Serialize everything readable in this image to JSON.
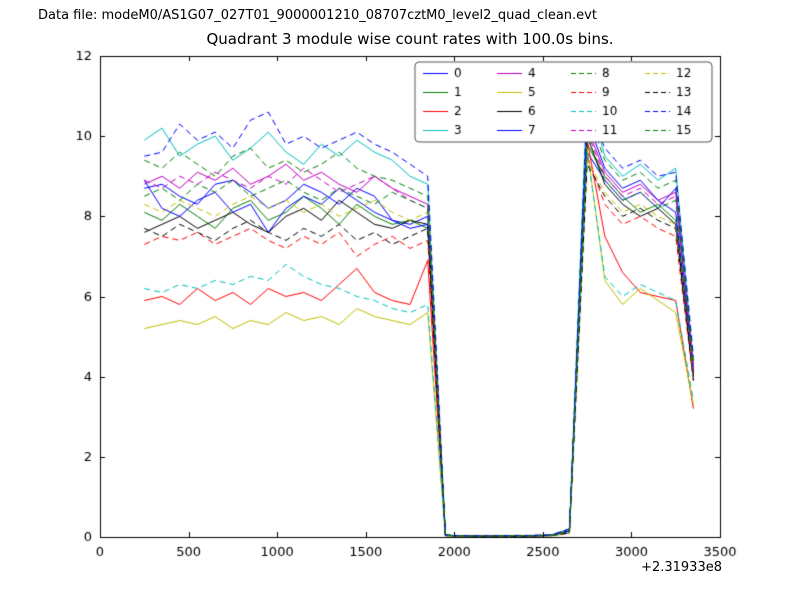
{
  "figure": {
    "datafile_label": "Data file: modeM0/AS1G07_027T01_9000001210_08707cztM0_level2_quad_clean.evt",
    "title": "Quadrant 3 module wise count rates with 100.0s bins."
  },
  "chart_data": {
    "type": "line",
    "title": "Quadrant 3 module wise count rates with 100.0s bins.",
    "xlabel": "",
    "ylabel": "",
    "xlim": [
      0,
      3500
    ],
    "ylim": [
      0,
      12
    ],
    "xticks": [
      0,
      500,
      1000,
      1500,
      2000,
      2500,
      3000,
      3500
    ],
    "yticks": [
      0,
      2,
      4,
      6,
      8,
      10,
      12
    ],
    "x_offset_text": "+2.31933e8",
    "grid": false,
    "legend_position": "upper center-right, 4 columns",
    "legend_labels": [
      "0",
      "1",
      "2",
      "3",
      "4",
      "5",
      "6",
      "7",
      "8",
      "9",
      "10",
      "11",
      "12",
      "13",
      "14",
      "15"
    ],
    "x": [
      250,
      350,
      450,
      550,
      650,
      750,
      850,
      950,
      1050,
      1150,
      1250,
      1350,
      1450,
      1550,
      1650,
      1750,
      1850,
      1950,
      2050,
      2150,
      2250,
      2350,
      2450,
      2550,
      2650,
      2750,
      2850,
      2950,
      3050,
      3150,
      3250,
      3350
    ],
    "series": [
      {
        "name": "0",
        "color": "#0000ff",
        "dash": false,
        "values": [
          8.7,
          8.8,
          8.5,
          8.3,
          8.8,
          8.9,
          8.6,
          8.2,
          8.4,
          8.8,
          8.6,
          8.3,
          8.7,
          8.5,
          7.9,
          7.8,
          8.0,
          0.05,
          0.02,
          0.03,
          0.02,
          0.03,
          0.04,
          0.05,
          0.2,
          9.6,
          8.9,
          8.4,
          8.6,
          8.2,
          8.7,
          4.1
        ]
      },
      {
        "name": "1",
        "color": "#008000",
        "dash": false,
        "values": [
          8.1,
          7.9,
          8.3,
          8.0,
          7.7,
          8.2,
          8.4,
          7.9,
          8.1,
          8.5,
          8.2,
          7.8,
          8.3,
          8.0,
          7.8,
          7.9,
          7.7,
          0.04,
          0.03,
          0.02,
          0.03,
          0.02,
          0.03,
          0.04,
          0.15,
          9.8,
          9.0,
          8.5,
          8.1,
          8.3,
          7.9,
          4.0
        ]
      },
      {
        "name": "2",
        "color": "#ff0000",
        "dash": false,
        "values": [
          5.9,
          6.0,
          5.8,
          6.2,
          5.9,
          6.1,
          5.8,
          6.2,
          6.0,
          6.1,
          5.9,
          6.3,
          6.7,
          6.1,
          5.9,
          5.8,
          6.9,
          0.03,
          0.02,
          0.02,
          0.03,
          0.02,
          0.03,
          0.03,
          0.1,
          9.9,
          7.5,
          6.6,
          6.1,
          6.0,
          5.9,
          3.2
        ]
      },
      {
        "name": "3",
        "color": "#00bfbf",
        "dash": false,
        "values": [
          9.9,
          10.2,
          9.5,
          9.8,
          10.0,
          9.4,
          9.7,
          10.1,
          9.6,
          9.3,
          9.8,
          9.5,
          9.9,
          9.6,
          9.4,
          9.0,
          8.8,
          0.05,
          0.02,
          0.03,
          0.03,
          0.04,
          0.03,
          0.05,
          0.2,
          11.1,
          9.5,
          9.0,
          9.3,
          8.9,
          9.2,
          4.3
        ]
      },
      {
        "name": "4",
        "color": "#bf00bf",
        "dash": false,
        "values": [
          8.8,
          9.0,
          8.7,
          9.1,
          8.9,
          9.2,
          8.8,
          9.0,
          9.3,
          8.9,
          9.1,
          8.8,
          8.6,
          9.0,
          8.7,
          8.5,
          8.3,
          0.04,
          0.03,
          0.02,
          0.03,
          0.03,
          0.04,
          0.04,
          0.15,
          10.2,
          9.1,
          8.6,
          8.8,
          8.4,
          8.6,
          4.2
        ]
      },
      {
        "name": "5",
        "color": "#bfbf00",
        "dash": false,
        "values": [
          5.2,
          5.3,
          5.4,
          5.3,
          5.5,
          5.2,
          5.4,
          5.3,
          5.6,
          5.4,
          5.5,
          5.3,
          5.7,
          5.5,
          5.4,
          5.3,
          5.6,
          0.03,
          0.02,
          0.02,
          0.02,
          0.03,
          0.03,
          0.03,
          0.1,
          9.7,
          6.4,
          5.8,
          6.2,
          5.9,
          5.6,
          3.3
        ]
      },
      {
        "name": "6",
        "color": "#000000",
        "dash": false,
        "values": [
          7.6,
          7.8,
          8.0,
          7.7,
          7.9,
          8.1,
          7.8,
          7.6,
          8.0,
          8.2,
          7.9,
          8.4,
          8.1,
          7.8,
          7.7,
          7.9,
          7.8,
          0.04,
          0.02,
          0.03,
          0.02,
          0.03,
          0.03,
          0.04,
          0.15,
          10.0,
          8.8,
          8.3,
          8.0,
          8.2,
          7.8,
          4.0
        ]
      },
      {
        "name": "7",
        "color": "#0000ff",
        "dash": false,
        "values": [
          8.9,
          8.2,
          8.0,
          8.4,
          8.6,
          8.1,
          8.3,
          7.6,
          8.2,
          8.5,
          8.3,
          8.7,
          8.4,
          8.1,
          7.9,
          7.7,
          7.8,
          0.04,
          0.03,
          0.02,
          0.03,
          0.02,
          0.03,
          0.04,
          0.15,
          10.4,
          9.2,
          8.7,
          8.9,
          8.4,
          8.1,
          4.1
        ]
      },
      {
        "name": "8",
        "color": "#008000",
        "dash": true,
        "values": [
          9.4,
          9.2,
          9.6,
          9.3,
          9.0,
          9.5,
          9.7,
          9.2,
          9.4,
          9.1,
          9.3,
          9.6,
          9.2,
          9.0,
          8.9,
          8.7,
          8.5,
          0.05,
          0.03,
          0.03,
          0.02,
          0.03,
          0.04,
          0.05,
          0.2,
          10.6,
          9.4,
          8.9,
          9.1,
          8.7,
          8.9,
          4.4
        ]
      },
      {
        "name": "9",
        "color": "#ff0000",
        "dash": true,
        "values": [
          7.3,
          7.5,
          7.4,
          7.6,
          7.3,
          7.5,
          7.7,
          7.4,
          7.2,
          7.5,
          7.3,
          7.6,
          7.0,
          7.3,
          7.5,
          7.2,
          7.4,
          0.04,
          0.02,
          0.03,
          0.02,
          0.03,
          0.03,
          0.04,
          0.1,
          9.5,
          8.3,
          7.8,
          8.0,
          7.7,
          7.5,
          3.9
        ]
      },
      {
        "name": "10",
        "color": "#00bfbf",
        "dash": true,
        "values": [
          6.2,
          6.1,
          6.3,
          6.2,
          6.4,
          6.3,
          6.5,
          6.4,
          6.8,
          6.5,
          6.3,
          6.2,
          6.0,
          5.9,
          5.7,
          5.6,
          5.8,
          0.03,
          0.02,
          0.02,
          0.03,
          0.02,
          0.03,
          0.03,
          0.1,
          9.6,
          6.5,
          6.0,
          6.3,
          6.1,
          5.9,
          3.4
        ]
      },
      {
        "name": "11",
        "color": "#bf00bf",
        "dash": true,
        "values": [
          8.9,
          8.7,
          9.0,
          8.8,
          9.1,
          8.9,
          8.7,
          9.0,
          8.8,
          9.2,
          8.9,
          8.6,
          8.8,
          9.0,
          8.7,
          8.4,
          8.2,
          0.04,
          0.03,
          0.03,
          0.02,
          0.03,
          0.03,
          0.04,
          0.15,
          10.1,
          9.0,
          8.5,
          8.7,
          8.3,
          8.5,
          4.2
        ]
      },
      {
        "name": "12",
        "color": "#bfbf00",
        "dash": true,
        "values": [
          8.3,
          8.1,
          8.4,
          8.2,
          8.0,
          8.3,
          8.5,
          8.2,
          8.4,
          8.1,
          8.3,
          8.0,
          8.2,
          8.4,
          8.1,
          7.9,
          8.1,
          0.04,
          0.02,
          0.03,
          0.02,
          0.03,
          0.03,
          0.04,
          0.1,
          9.4,
          8.6,
          8.1,
          8.3,
          8.0,
          7.8,
          4.0
        ]
      },
      {
        "name": "13",
        "color": "#000000",
        "dash": true,
        "values": [
          7.7,
          7.5,
          7.8,
          7.6,
          7.4,
          7.7,
          7.9,
          7.6,
          7.4,
          7.7,
          7.5,
          7.8,
          7.4,
          7.6,
          7.3,
          7.5,
          7.7,
          0.04,
          0.03,
          0.02,
          0.03,
          0.02,
          0.03,
          0.04,
          0.1,
          9.3,
          8.5,
          8.0,
          8.2,
          7.9,
          7.7,
          3.9
        ]
      },
      {
        "name": "14",
        "color": "#0000ff",
        "dash": true,
        "values": [
          9.5,
          9.6,
          10.3,
          9.9,
          10.1,
          9.7,
          10.4,
          10.6,
          9.8,
          10.0,
          9.7,
          9.9,
          10.1,
          9.8,
          9.6,
          9.3,
          9.0,
          0.05,
          0.03,
          0.03,
          0.03,
          0.04,
          0.04,
          0.05,
          0.2,
          10.8,
          9.7,
          9.2,
          9.4,
          9.0,
          9.1,
          4.5
        ]
      },
      {
        "name": "15",
        "color": "#008000",
        "dash": true,
        "values": [
          8.5,
          8.7,
          8.4,
          8.8,
          8.6,
          8.9,
          8.5,
          8.7,
          8.9,
          8.6,
          8.4,
          8.7,
          8.5,
          8.3,
          8.6,
          8.4,
          8.2,
          0.04,
          0.03,
          0.02,
          0.03,
          0.03,
          0.03,
          0.04,
          0.15,
          10.0,
          8.9,
          8.4,
          8.6,
          8.2,
          8.4,
          4.3
        ]
      }
    ]
  }
}
